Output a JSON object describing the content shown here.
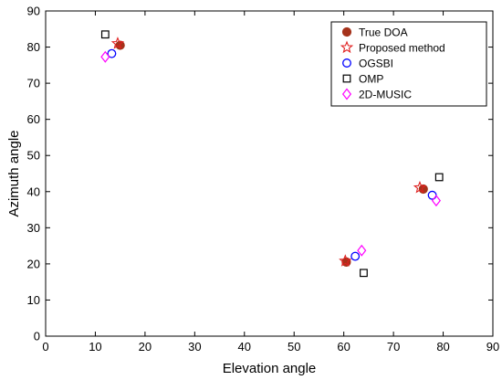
{
  "chart_data": {
    "type": "scatter",
    "xlabel": "Elevation angle",
    "ylabel": "Azimuth angle",
    "xlim": [
      0,
      90
    ],
    "ylim": [
      0,
      90
    ],
    "xticks": [
      0,
      10,
      20,
      30,
      40,
      50,
      60,
      70,
      80,
      90
    ],
    "yticks": [
      0,
      10,
      20,
      30,
      40,
      50,
      60,
      70,
      80,
      90
    ],
    "grid": false,
    "legend_position": "top-right",
    "series": [
      {
        "name": "True DOA",
        "marker": "filled-circle",
        "color": "#a5321b",
        "points": [
          {
            "x": 15,
            "y": 80.5
          },
          {
            "x": 60.5,
            "y": 20.5
          },
          {
            "x": 76,
            "y": 40.7
          }
        ]
      },
      {
        "name": "Proposed method",
        "marker": "star",
        "color": "#e02020",
        "points": [
          {
            "x": 14.5,
            "y": 81
          },
          {
            "x": 60.3,
            "y": 20.8
          },
          {
            "x": 75.3,
            "y": 41.1
          }
        ]
      },
      {
        "name": "OGSBI",
        "marker": "circle",
        "color": "#0000ff",
        "points": [
          {
            "x": 13.3,
            "y": 78.2
          },
          {
            "x": 62.3,
            "y": 22.1
          },
          {
            "x": 77.8,
            "y": 39
          }
        ]
      },
      {
        "name": "OMP",
        "marker": "square",
        "color": "#000000",
        "points": [
          {
            "x": 12,
            "y": 83.5
          },
          {
            "x": 64,
            "y": 17.5
          },
          {
            "x": 79.2,
            "y": 44
          }
        ]
      },
      {
        "name": "2D-MUSIC",
        "marker": "diamond",
        "color": "#ff00ff",
        "points": [
          {
            "x": 12,
            "y": 77.3
          },
          {
            "x": 63.6,
            "y": 23.7
          },
          {
            "x": 78.6,
            "y": 37.5
          }
        ]
      }
    ]
  }
}
